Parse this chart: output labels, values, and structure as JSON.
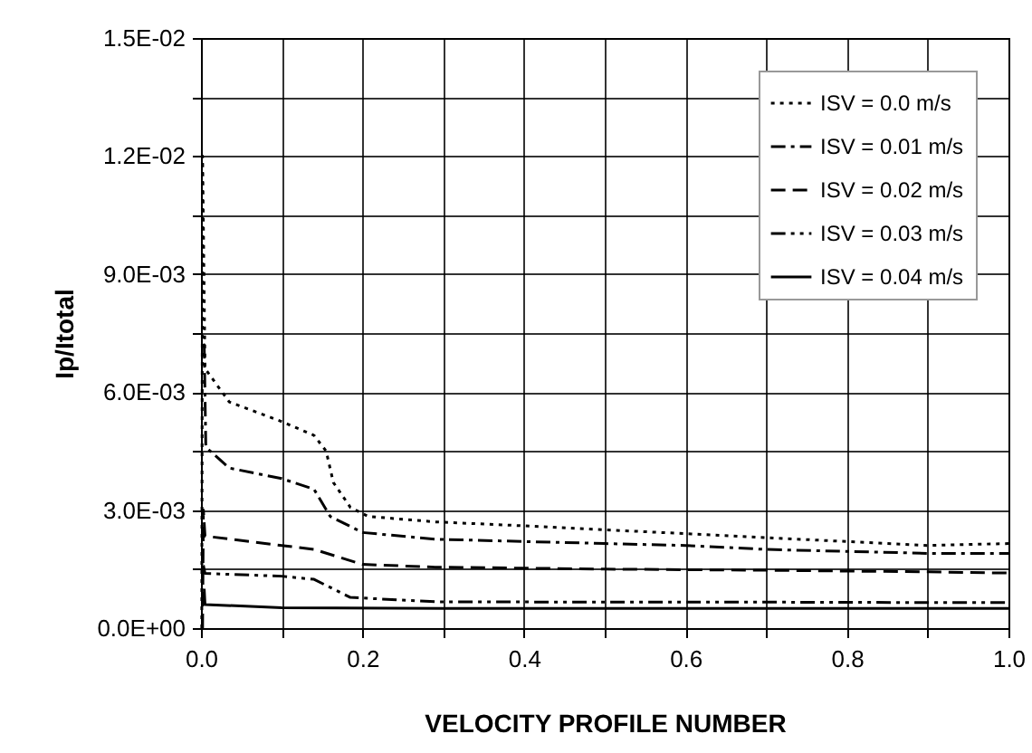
{
  "chart_data": {
    "type": "line",
    "xlabel": "VELOCITY PROFILE NUMBER",
    "ylabel": "Ip/Itotal",
    "xlim": [
      0,
      1.0
    ],
    "ylim": [
      0,
      0.015
    ],
    "xticks": [
      {
        "value": 0,
        "label": "0.0"
      },
      {
        "value": 0.1,
        "label": null
      },
      {
        "value": 0.2,
        "label": "0.2"
      },
      {
        "value": 0.3,
        "label": null
      },
      {
        "value": 0.4,
        "label": "0.4"
      },
      {
        "value": 0.5,
        "label": null
      },
      {
        "value": 0.6,
        "label": "0.6"
      },
      {
        "value": 0.7,
        "label": null
      },
      {
        "value": 0.8,
        "label": "0.8"
      },
      {
        "value": 0.9,
        "label": null
      },
      {
        "value": 1.0,
        "label": "1.0"
      }
    ],
    "yticks": [
      {
        "value": 0,
        "label": "0.0E+00"
      },
      {
        "value": 0.0015,
        "label": null
      },
      {
        "value": 0.003,
        "label": "3.0E-03"
      },
      {
        "value": 0.0045,
        "label": null
      },
      {
        "value": 0.006,
        "label": "6.0E-03"
      },
      {
        "value": 0.0075,
        "label": null
      },
      {
        "value": 0.009,
        "label": "9.0E-03"
      },
      {
        "value": 0.0105,
        "label": null
      },
      {
        "value": 0.012,
        "label": "1.2E-02"
      },
      {
        "value": 0.0135,
        "label": null
      },
      {
        "value": 0.015,
        "label": "1.5E-02"
      }
    ],
    "grid": true,
    "legend": "top right",
    "marker": "none",
    "series": [
      {
        "name": "ISV = 0.0 m/s",
        "color": "#000000",
        "line_style": "dotted",
        "x": [
          0.001,
          0.002,
          0.005,
          0.035,
          0.1,
          0.14,
          0.155,
          0.164,
          0.185,
          0.207,
          0.29,
          0.4,
          0.5,
          0.6,
          0.7,
          0.8,
          0.9,
          1.0
        ],
        "values": [
          0.0,
          0.012,
          0.0066,
          0.00575,
          0.00525,
          0.0049,
          0.0045,
          0.0037,
          0.00307,
          0.00284,
          0.0027,
          0.0026,
          0.0025,
          0.0024,
          0.0023,
          0.0022,
          0.0021,
          0.00215
        ]
      },
      {
        "name": "ISV = 0.01 m/s",
        "color": "#000000",
        "line_style": "dashdot",
        "x": [
          0.003,
          0.004,
          0.006,
          0.035,
          0.1,
          0.14,
          0.16,
          0.2,
          0.29,
          0.4,
          0.5,
          0.6,
          0.7,
          0.8,
          0.9,
          1.0
        ],
        "values": [
          0.0072,
          0.0072,
          0.0046,
          0.00407,
          0.0038,
          0.00353,
          0.00284,
          0.00243,
          0.00226,
          0.0022,
          0.00215,
          0.0021,
          0.002,
          0.00195,
          0.0019,
          0.0019
        ]
      },
      {
        "name": "ISV = 0.02 m/s",
        "color": "#000000",
        "line_style": "dashed",
        "x": [
          0.002,
          0.003,
          0.005,
          0.1,
          0.14,
          0.2,
          0.29,
          0.5,
          0.7,
          0.9,
          1.0
        ],
        "values": [
          0.0,
          0.003,
          0.00234,
          0.0021,
          0.002,
          0.00162,
          0.00155,
          0.0015,
          0.00147,
          0.00143,
          0.0014
        ]
      },
      {
        "name": "ISV = 0.03 m/s",
        "color": "#000000",
        "line_style": "dashdotdot",
        "x": [
          0.003,
          0.005,
          0.1,
          0.14,
          0.185,
          0.29,
          0.5,
          0.7,
          0.9,
          1.0
        ],
        "values": [
          0.0016,
          0.00139,
          0.00132,
          0.00124,
          0.00078,
          0.00067,
          0.00066,
          0.00066,
          0.00065,
          0.00065
        ]
      },
      {
        "name": "ISV = 0.04 m/s",
        "color": "#000000",
        "line_style": "solid",
        "x": [
          0.004,
          0.005,
          0.1,
          0.3,
          0.5,
          0.7,
          0.9,
          1.0
        ],
        "values": [
          0.001,
          0.0006,
          0.00052,
          0.0005,
          0.0005,
          0.0005,
          0.0005,
          0.0005
        ]
      }
    ]
  }
}
